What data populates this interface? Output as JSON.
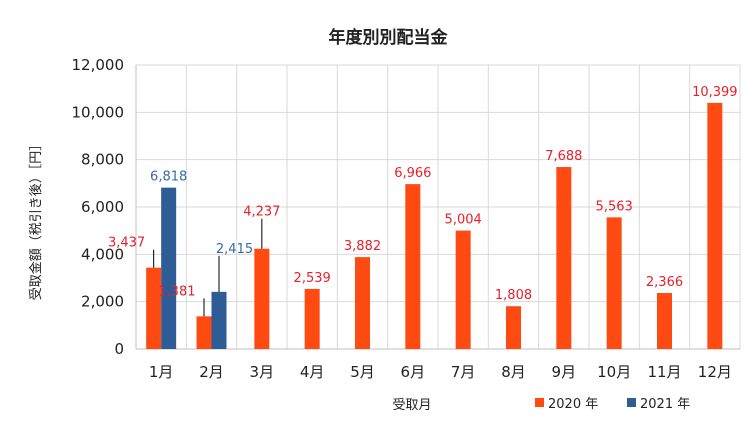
{
  "chart_data": {
    "type": "bar",
    "title": "年度別別配当金",
    "xlabel": "受取月",
    "ylabel": "受取金額（税引き後）［円］",
    "ylim": [
      0,
      12000
    ],
    "yticks": [
      "0",
      "2,000",
      "4,000",
      "6,000",
      "8,000",
      "10,000",
      "12,000"
    ],
    "categories": [
      "1月",
      "2月",
      "3月",
      "4月",
      "5月",
      "6月",
      "7月",
      "8月",
      "9月",
      "10月",
      "11月",
      "12月"
    ],
    "series": [
      {
        "name": "2020 年",
        "color": "#ff4a12",
        "label_color": "#e8202a",
        "values": [
          3437,
          1381,
          4237,
          2539,
          3882,
          6966,
          5004,
          1808,
          7688,
          5563,
          2366,
          10399
        ],
        "labels": [
          "3,437",
          "1,381",
          "4,237",
          "2,539",
          "3,882",
          "6,966",
          "5,004",
          "1,808",
          "7,688",
          "5,563",
          "2,366",
          "10,399"
        ]
      },
      {
        "name": "2021 年",
        "color": "#2e5c96",
        "label_color": "#3a6aa8",
        "values": [
          6818,
          2415,
          null,
          null,
          null,
          null,
          null,
          null,
          null,
          null,
          null,
          null
        ],
        "labels": [
          "6,818",
          "2,415",
          "",
          "",
          "",
          "",
          "",
          "",
          "",
          "",
          "",
          ""
        ]
      }
    ],
    "grid": true,
    "legend": "bottom-right"
  }
}
